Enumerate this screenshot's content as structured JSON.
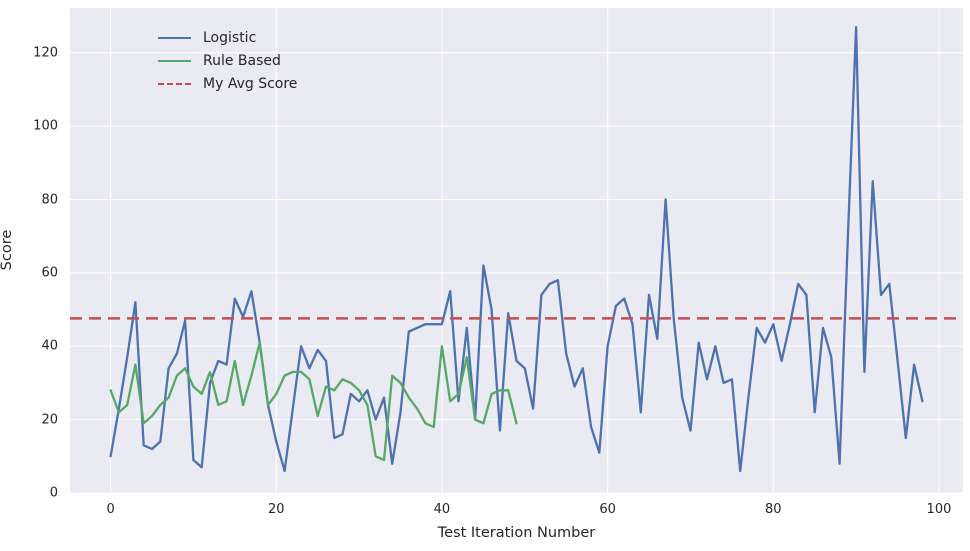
{
  "figure": {
    "background": "#ffffff",
    "plot_background": "#eaeaf2",
    "grid_color": "#ffffff",
    "text_color": "#262626"
  },
  "chart_data": {
    "type": "line",
    "title": "",
    "xlabel": "Test Iteration Number",
    "ylabel": "Score",
    "xlim": [
      -4.9,
      102.9
    ],
    "ylim": [
      0,
      132.2
    ],
    "x_ticks": [
      0,
      20,
      40,
      60,
      80,
      100
    ],
    "y_ticks": [
      0,
      20,
      40,
      60,
      80,
      100,
      120
    ],
    "grid": true,
    "legend_position": "upper-left",
    "series": [
      {
        "name": "Logistic",
        "color": "#4C72B0",
        "style": "solid",
        "kind": "line",
        "x_start": 0,
        "values": [
          10,
          23,
          37,
          52,
          13,
          12,
          14,
          34,
          38,
          47,
          9,
          7,
          30,
          36,
          35,
          53,
          48,
          55,
          41,
          24,
          14,
          6,
          23,
          40,
          34,
          39,
          36,
          15,
          16,
          27,
          25,
          28,
          20,
          26,
          8,
          22,
          44,
          45,
          46,
          46,
          46,
          55,
          25,
          45,
          20,
          62,
          50,
          17,
          49,
          36,
          34,
          23,
          54,
          57,
          58,
          38,
          29,
          34,
          18,
          11,
          40,
          51,
          53,
          46,
          22,
          54,
          42,
          80,
          47,
          26,
          17,
          41,
          31,
          40,
          30,
          31,
          6,
          26,
          45,
          41,
          46,
          36,
          46,
          57,
          54,
          22,
          45,
          37,
          8,
          70,
          127,
          33,
          85,
          54,
          57,
          36,
          15,
          35,
          25
        ]
      },
      {
        "name": "Rule Based",
        "color": "#55A868",
        "style": "solid",
        "kind": "line",
        "x_start": 0,
        "values": [
          28,
          22,
          24,
          35,
          19,
          21,
          24,
          26,
          32,
          34,
          29,
          27,
          33,
          24,
          25,
          36,
          24,
          32,
          41,
          24,
          27,
          32,
          33,
          33,
          31,
          21,
          29,
          28,
          31,
          30,
          28,
          24,
          10,
          9,
          32,
          30,
          26,
          23,
          19,
          18,
          40,
          25,
          27,
          37,
          20,
          19,
          27,
          28,
          28,
          19
        ]
      },
      {
        "name": "My Avg Score",
        "color": "#C44E52",
        "style": "dashed",
        "kind": "hline",
        "value": 47.6
      }
    ]
  }
}
